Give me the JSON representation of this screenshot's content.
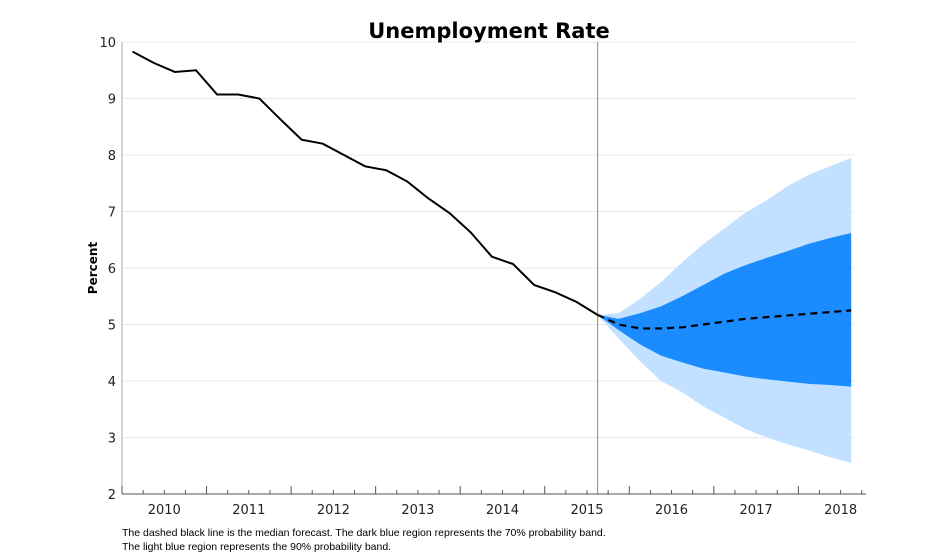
{
  "chart_data": {
    "type": "line",
    "title": "Unemployment Rate",
    "xlabel": "",
    "ylabel": "Percent",
    "ylim": [
      2,
      10
    ],
    "xlim": [
      2010.0,
      2018.8
    ],
    "y_ticks": [
      "2",
      "3",
      "4",
      "5",
      "6",
      "7",
      "8",
      "9",
      "10"
    ],
    "x_ticks": [
      "2010",
      "2011",
      "2012",
      "2013",
      "2014",
      "2015",
      "2016",
      "2017",
      "2018"
    ],
    "grid": "horizontal",
    "forecast_start": "2015Q3",
    "colors": {
      "history": "#000000",
      "median": "#000000",
      "band70": "#1a8cff",
      "band90": "#c2e0ff",
      "grid": "#e8e8e8",
      "divider": "#999999"
    },
    "history": {
      "quarters": [
        "2010Q1",
        "2010Q2",
        "2010Q3",
        "2010Q4",
        "2011Q1",
        "2011Q2",
        "2011Q3",
        "2011Q4",
        "2012Q1",
        "2012Q2",
        "2012Q3",
        "2012Q4",
        "2013Q1",
        "2013Q2",
        "2013Q3",
        "2013Q4",
        "2014Q1",
        "2014Q2",
        "2014Q3",
        "2014Q4",
        "2015Q1",
        "2015Q2",
        "2015Q3"
      ],
      "values": [
        9.83,
        9.63,
        9.47,
        9.5,
        9.07,
        9.07,
        9.0,
        8.63,
        8.27,
        8.2,
        8.0,
        7.8,
        7.73,
        7.53,
        7.23,
        6.97,
        6.63,
        6.2,
        6.07,
        5.7,
        5.57,
        5.4,
        5.17
      ]
    },
    "forecast": {
      "quarters": [
        "2015Q3",
        "2015Q4",
        "2016Q1",
        "2016Q2",
        "2016Q3",
        "2016Q4",
        "2017Q1",
        "2017Q2",
        "2017Q3",
        "2017Q4",
        "2018Q1",
        "2018Q2",
        "2018Q3"
      ],
      "median": [
        5.17,
        5.0,
        4.93,
        4.93,
        4.95,
        5.0,
        5.05,
        5.1,
        5.13,
        5.16,
        5.19,
        5.22,
        5.25
      ],
      "band70_upper": [
        5.17,
        5.1,
        5.2,
        5.32,
        5.5,
        5.7,
        5.9,
        6.05,
        6.18,
        6.3,
        6.43,
        6.53,
        6.62
      ],
      "band70_lower": [
        5.17,
        4.9,
        4.65,
        4.45,
        4.33,
        4.22,
        4.15,
        4.08,
        4.03,
        3.99,
        3.95,
        3.93,
        3.9
      ],
      "band90_upper": [
        5.17,
        5.2,
        5.45,
        5.75,
        6.1,
        6.42,
        6.7,
        6.98,
        7.2,
        7.45,
        7.65,
        7.8,
        7.95
      ],
      "band90_lower": [
        5.17,
        4.75,
        4.35,
        4.0,
        3.8,
        3.55,
        3.35,
        3.15,
        3.0,
        2.88,
        2.77,
        2.65,
        2.55
      ]
    }
  },
  "caption": {
    "line1": "The dashed black line is the median forecast. The dark blue region represents the 70% probability band.",
    "line2": "The light blue region represents the 90% probability band."
  }
}
